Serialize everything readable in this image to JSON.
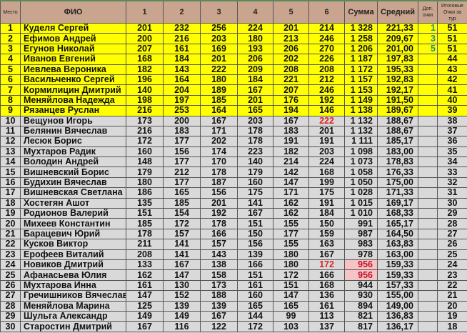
{
  "headers": {
    "place": "Место",
    "name": "ФИО",
    "g1": "1",
    "g2": "2",
    "g3": "3",
    "g4": "4",
    "g5": "5",
    "g6": "6",
    "sum": "Сумма",
    "avg": "Средний",
    "bonus": "Доп. очки",
    "points": "Итоговые Очки за тур"
  },
  "colors": {
    "header": "#c9a48e",
    "top": "#ffff00",
    "rest": "#d9d9d9",
    "highlight_text": "#e02020",
    "highlight_bg": "#f6c4c4"
  },
  "rows": [
    {
      "place": "1",
      "name": "Куделя Сергей",
      "games": [
        "201",
        "232",
        "256",
        "224",
        "201",
        "214"
      ],
      "sum": "1 328",
      "avg": "221,33",
      "bonus": "1",
      "points": "51"
    },
    {
      "place": "2",
      "name": "Ефимов Андрей",
      "games": [
        "200",
        "216",
        "203",
        "180",
        "213",
        "246"
      ],
      "sum": "1 258",
      "avg": "209,67",
      "bonus": "3",
      "points": "51"
    },
    {
      "place": "3",
      "name": "Егунов Николай",
      "games": [
        "207",
        "161",
        "169",
        "193",
        "206",
        "270"
      ],
      "sum": "1 206",
      "avg": "201,00",
      "bonus": "5",
      "points": "51"
    },
    {
      "place": "4",
      "name": "Иванов Евгений",
      "games": [
        "168",
        "184",
        "201",
        "206",
        "202",
        "226"
      ],
      "sum": "1 187",
      "avg": "197,83",
      "bonus": "",
      "points": "44"
    },
    {
      "place": "5",
      "name": "Иевлева Вероника",
      "games": [
        "182",
        "143",
        "222",
        "209",
        "208",
        "208"
      ],
      "sum": "1 172",
      "avg": "195,33",
      "bonus": "",
      "points": "43"
    },
    {
      "place": "6",
      "name": "Васильченко Сергей",
      "games": [
        "196",
        "164",
        "180",
        "184",
        "221",
        "212"
      ],
      "sum": "1 157",
      "avg": "192,83",
      "bonus": "",
      "points": "42"
    },
    {
      "place": "7",
      "name": "Кормилицин Дмитрий",
      "games": [
        "140",
        "204",
        "189",
        "167",
        "207",
        "246"
      ],
      "sum": "1 153",
      "avg": "192,17",
      "bonus": "",
      "points": "41"
    },
    {
      "place": "8",
      "name": "Меняйлова Надежда",
      "games": [
        "198",
        "197",
        "185",
        "201",
        "176",
        "192"
      ],
      "sum": "1 149",
      "avg": "191,50",
      "bonus": "",
      "points": "40"
    },
    {
      "place": "9",
      "name": "Рязанцев Руслан",
      "games": [
        "216",
        "253",
        "164",
        "165",
        "194",
        "146"
      ],
      "sum": "1 138",
      "avg": "189,67",
      "bonus": "",
      "points": "39"
    },
    {
      "place": "10",
      "name": "Вещунов Игорь",
      "games": [
        "173",
        "200",
        "167",
        "203",
        "167",
        "222"
      ],
      "sum": "1 132",
      "avg": "188,67",
      "bonus": "",
      "points": "38",
      "red_game": 5
    },
    {
      "place": "11",
      "name": "Белянин Вячеслав",
      "games": [
        "216",
        "183",
        "171",
        "178",
        "183",
        "201"
      ],
      "sum": "1 132",
      "avg": "188,67",
      "bonus": "",
      "points": "37"
    },
    {
      "place": "12",
      "name": "Лесюк Борис",
      "games": [
        "172",
        "177",
        "202",
        "178",
        "191",
        "191"
      ],
      "sum": "1 111",
      "avg": "185,17",
      "bonus": "",
      "points": "36"
    },
    {
      "place": "13",
      "name": "Мухтаров Радик",
      "games": [
        "160",
        "156",
        "174",
        "223",
        "182",
        "203"
      ],
      "sum": "1 098",
      "avg": "183,00",
      "bonus": "",
      "points": "35"
    },
    {
      "place": "14",
      "name": "Володин Андрей",
      "games": [
        "148",
        "177",
        "170",
        "140",
        "214",
        "224"
      ],
      "sum": "1 073",
      "avg": "178,83",
      "bonus": "",
      "points": "34"
    },
    {
      "place": "15",
      "name": "Вишневский Борис",
      "games": [
        "179",
        "212",
        "178",
        "179",
        "142",
        "168"
      ],
      "sum": "1 058",
      "avg": "176,33",
      "bonus": "",
      "points": "33"
    },
    {
      "place": "16",
      "name": "Будихин Вячеслав",
      "games": [
        "180",
        "177",
        "187",
        "160",
        "147",
        "199"
      ],
      "sum": "1 050",
      "avg": "175,00",
      "bonus": "",
      "points": "32"
    },
    {
      "place": "17",
      "name": "Вишневская Светлана",
      "games": [
        "186",
        "165",
        "156",
        "175",
        "171",
        "175"
      ],
      "sum": "1 028",
      "avg": "171,33",
      "bonus": "",
      "points": "31"
    },
    {
      "place": "18",
      "name": "Хостегян Ашот",
      "games": [
        "135",
        "185",
        "201",
        "141",
        "162",
        "191"
      ],
      "sum": "1 015",
      "avg": "169,17",
      "bonus": "",
      "points": "30"
    },
    {
      "place": "19",
      "name": "Родионов Валерий",
      "games": [
        "151",
        "154",
        "192",
        "167",
        "162",
        "184"
      ],
      "sum": "1 010",
      "avg": "168,33",
      "bonus": "",
      "points": "29"
    },
    {
      "place": "20",
      "name": "Михеев Константин",
      "games": [
        "185",
        "172",
        "178",
        "151",
        "155",
        "150"
      ],
      "sum": "991",
      "avg": "165,17",
      "bonus": "",
      "points": "28"
    },
    {
      "place": "21",
      "name": "Барацевич Юрий",
      "games": [
        "178",
        "157",
        "166",
        "150",
        "177",
        "159"
      ],
      "sum": "987",
      "avg": "164,50",
      "bonus": "",
      "points": "27"
    },
    {
      "place": "22",
      "name": "Кусков Виктор",
      "games": [
        "211",
        "141",
        "157",
        "156",
        "155",
        "163"
      ],
      "sum": "983",
      "avg": "163,83",
      "bonus": "",
      "points": "26"
    },
    {
      "place": "23",
      "name": "Ерофеев Виталий",
      "games": [
        "208",
        "141",
        "143",
        "139",
        "180",
        "167"
      ],
      "sum": "978",
      "avg": "163,00",
      "bonus": "",
      "points": "25"
    },
    {
      "place": "24",
      "name": "Новиков Дмитрий",
      "games": [
        "133",
        "167",
        "138",
        "166",
        "180",
        "172"
      ],
      "sum": "956",
      "avg": "159,33",
      "bonus": "",
      "points": "24",
      "red_game": 5,
      "pink_sum": true
    },
    {
      "place": "25",
      "name": "Афанасьева Юлия",
      "games": [
        "162",
        "147",
        "158",
        "151",
        "172",
        "166"
      ],
      "sum": "956",
      "avg": "159,33",
      "bonus": "",
      "points": "23",
      "pink_sum": true
    },
    {
      "place": "26",
      "name": "Мухтарова Инна",
      "games": [
        "161",
        "130",
        "173",
        "161",
        "151",
        "168"
      ],
      "sum": "944",
      "avg": "157,33",
      "bonus": "",
      "points": "22"
    },
    {
      "place": "27",
      "name": "Гречишников Вячеслав",
      "games": [
        "147",
        "152",
        "188",
        "160",
        "147",
        "136"
      ],
      "sum": "930",
      "avg": "155,00",
      "bonus": "",
      "points": "21"
    },
    {
      "place": "28",
      "name": "Меняйлова Марина",
      "games": [
        "125",
        "139",
        "139",
        "165",
        "165",
        "161"
      ],
      "sum": "894",
      "avg": "149,00",
      "bonus": "",
      "points": "20"
    },
    {
      "place": "29",
      "name": "Шульга Александр",
      "games": [
        "149",
        "149",
        "167",
        "144",
        "99",
        "113"
      ],
      "sum": "821",
      "avg": "136,83",
      "bonus": "",
      "points": "19"
    },
    {
      "place": "30",
      "name": "Старостин Дмитрий",
      "games": [
        "167",
        "116",
        "122",
        "172",
        "103",
        "137"
      ],
      "sum": "817",
      "avg": "136,17",
      "bonus": "",
      "points": "18"
    }
  ]
}
